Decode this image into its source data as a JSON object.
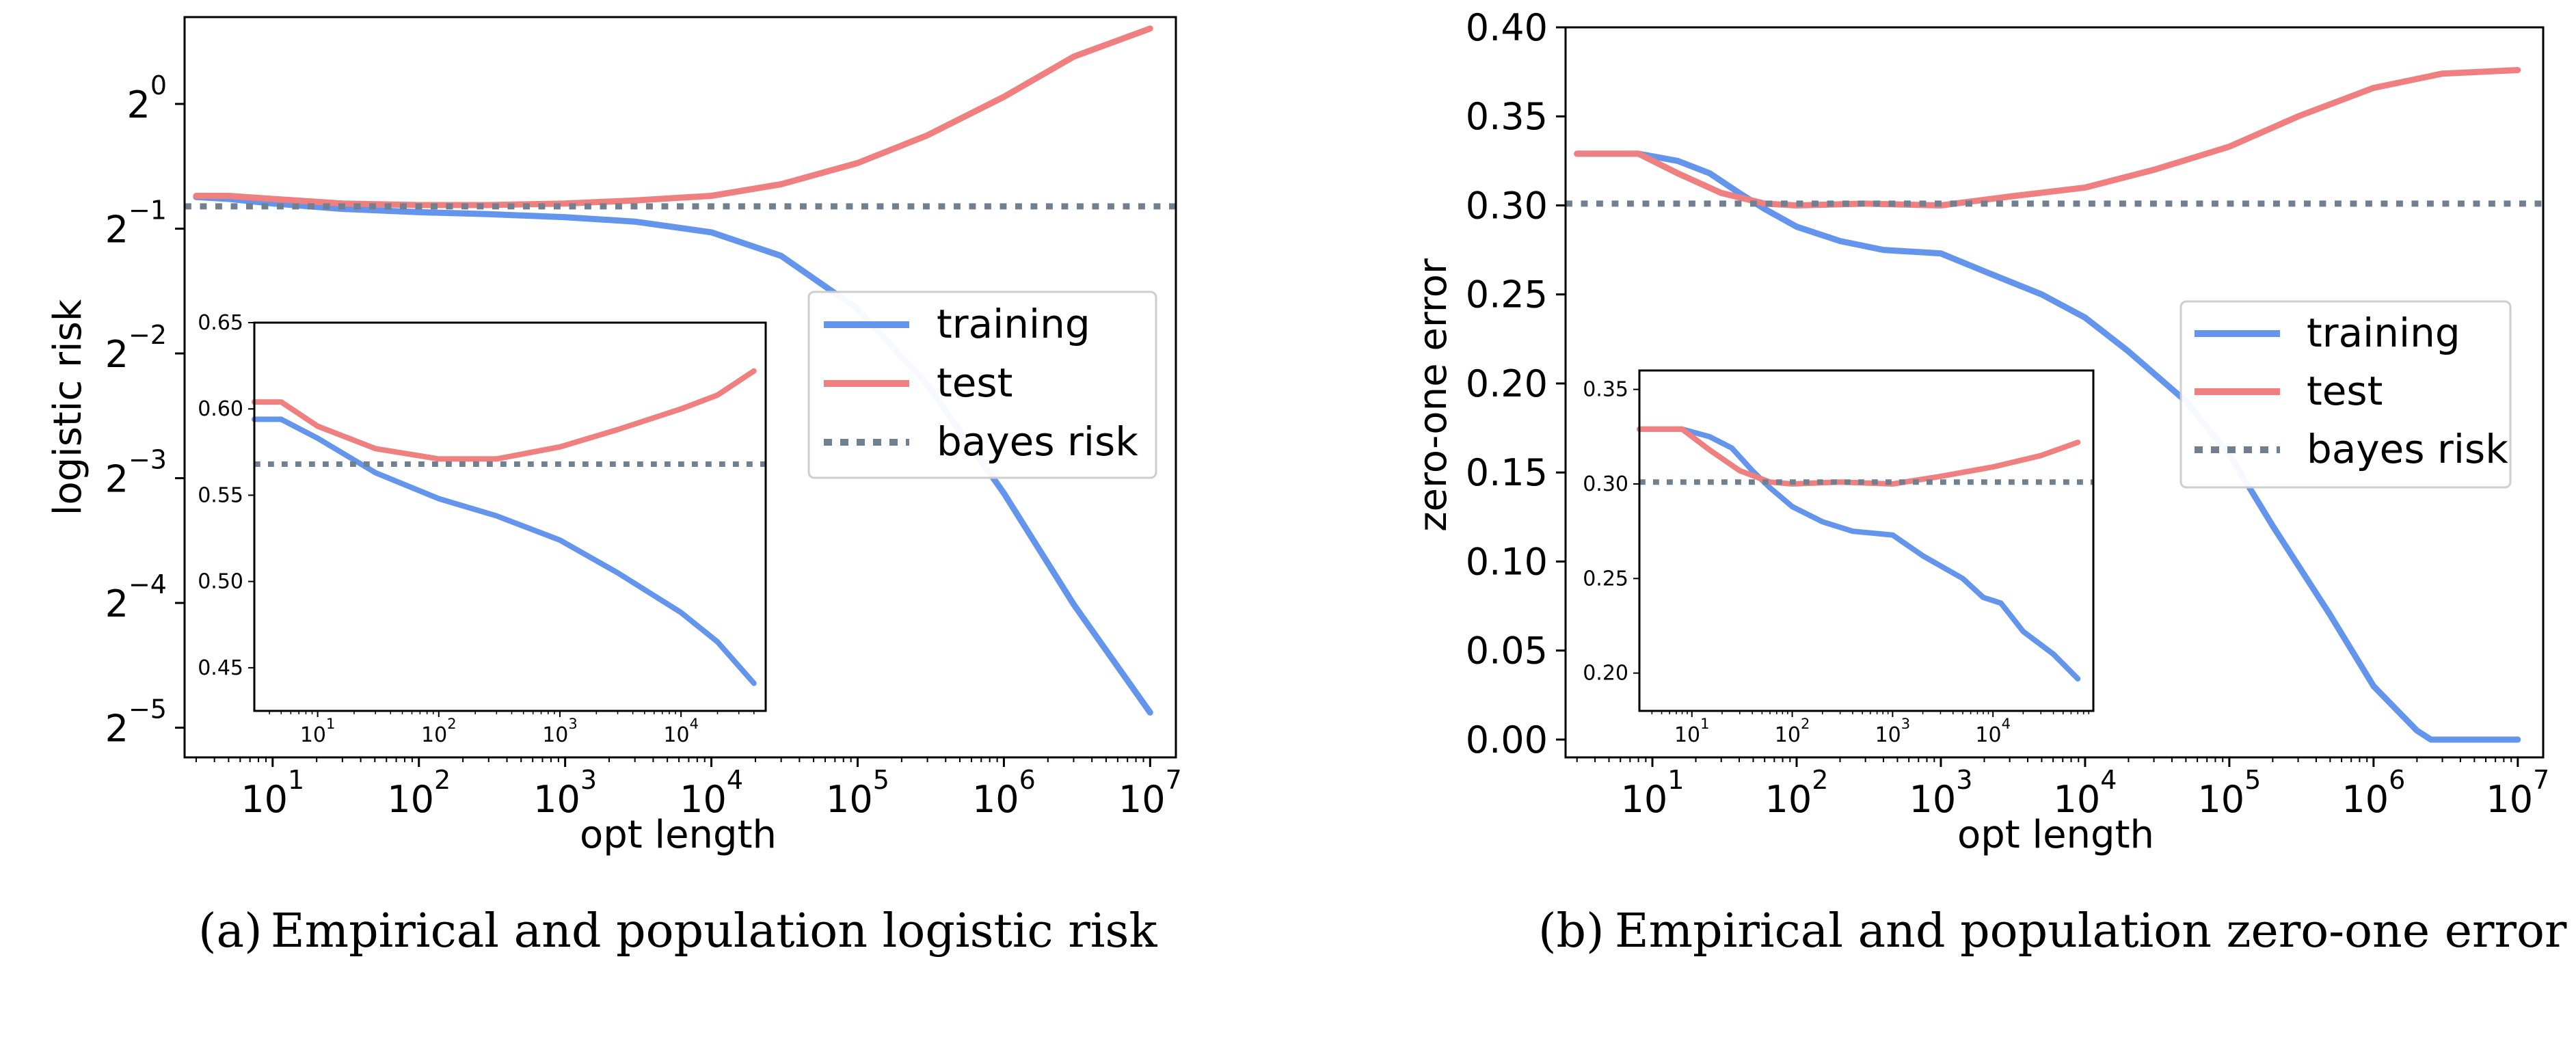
{
  "chart_data": [
    {
      "id": "a",
      "type": "line",
      "panel_label": "(a)",
      "caption": "Empirical and population logistic risk",
      "xlabel": "opt length",
      "ylabel": "logistic risk",
      "xscale": "log",
      "yscale": "log2",
      "xlim": [
        2.5,
        15000000
      ],
      "ylim": [
        0.0265,
        1.62
      ],
      "xticks": [
        {
          "value": 10,
          "base": "10",
          "exp": "1"
        },
        {
          "value": 100,
          "base": "10",
          "exp": "2"
        },
        {
          "value": 1000,
          "base": "10",
          "exp": "3"
        },
        {
          "value": 10000,
          "base": "10",
          "exp": "4"
        },
        {
          "value": 100000,
          "base": "10",
          "exp": "5"
        },
        {
          "value": 1000000,
          "base": "10",
          "exp": "6"
        },
        {
          "value": 10000000,
          "base": "10",
          "exp": "7"
        }
      ],
      "yticks": [
        {
          "value": 1,
          "base": "2",
          "exp": "0"
        },
        {
          "value": 0.5,
          "base": "2",
          "exp": "−1"
        },
        {
          "value": 0.25,
          "base": "2",
          "exp": "−2"
        },
        {
          "value": 0.125,
          "base": "2",
          "exp": "−3"
        },
        {
          "value": 0.0625,
          "base": "2",
          "exp": "−4"
        },
        {
          "value": 0.03125,
          "base": "2",
          "exp": "−5"
        }
      ],
      "legend": {
        "position": "center-right",
        "entries": [
          "training",
          "test",
          "bayes risk"
        ]
      },
      "series": [
        {
          "name": "training",
          "color": "#6495ed",
          "x": [
            3,
            5,
            10,
            30,
            100,
            300,
            1000,
            3000,
            10000,
            30000,
            100000,
            300000,
            1000000,
            3000000,
            10000000
          ],
          "y": [
            0.596,
            0.59,
            0.575,
            0.558,
            0.548,
            0.542,
            0.533,
            0.52,
            0.49,
            0.43,
            0.32,
            0.21,
            0.115,
            0.062,
            0.034
          ]
        },
        {
          "name": "test",
          "color": "#f07f7f",
          "x": [
            3,
            5,
            10,
            30,
            100,
            300,
            1000,
            3000,
            10000,
            30000,
            100000,
            300000,
            1000000,
            3000000,
            10000000
          ],
          "y": [
            0.6,
            0.6,
            0.59,
            0.575,
            0.57,
            0.57,
            0.575,
            0.585,
            0.6,
            0.64,
            0.72,
            0.84,
            1.04,
            1.3,
            1.52
          ]
        },
        {
          "name": "bayes risk",
          "color": "#708090",
          "style": "dotted",
          "x": [
            2.5,
            15000000
          ],
          "y": [
            0.566,
            0.566
          ]
        }
      ],
      "inset": {
        "xscale": "log",
        "xlim": [
          3,
          50000
        ],
        "ylim": [
          0.425,
          0.65
        ],
        "xticks": [
          {
            "value": 10,
            "base": "10",
            "exp": "1"
          },
          {
            "value": 100,
            "base": "10",
            "exp": "2"
          },
          {
            "value": 1000,
            "base": "10",
            "exp": "3"
          },
          {
            "value": 10000,
            "base": "10",
            "exp": "4"
          }
        ],
        "yticks": [
          0.45,
          0.5,
          0.55,
          0.6,
          0.65
        ],
        "ytick_labels": [
          "0.45",
          "0.50",
          "0.55",
          "0.60",
          "0.65"
        ],
        "series": [
          {
            "name": "training",
            "color": "#6495ed",
            "x": [
              3,
              5,
              10,
              30,
              100,
              300,
              1000,
              3000,
              10000,
              20000,
              40000
            ],
            "y": [
              0.594,
              0.594,
              0.583,
              0.563,
              0.548,
              0.538,
              0.524,
              0.505,
              0.482,
              0.465,
              0.441
            ]
          },
          {
            "name": "test",
            "color": "#f07f7f",
            "x": [
              3,
              5,
              10,
              30,
              100,
              300,
              1000,
              3000,
              10000,
              20000,
              40000
            ],
            "y": [
              0.604,
              0.604,
              0.59,
              0.577,
              0.571,
              0.571,
              0.578,
              0.588,
              0.6,
              0.608,
              0.622
            ]
          },
          {
            "name": "bayes risk",
            "color": "#708090",
            "style": "dotted",
            "x": [
              3,
              50000
            ],
            "y": [
              0.568,
              0.568
            ]
          }
        ]
      }
    },
    {
      "id": "b",
      "type": "line",
      "panel_label": "(b)",
      "caption": "Empirical and population zero-one error",
      "xlabel": "opt length",
      "ylabel": "zero-one error",
      "xscale": "log",
      "yscale": "linear",
      "xlim": [
        2.5,
        15000000
      ],
      "ylim": [
        -0.01,
        0.4
      ],
      "xticks": [
        {
          "value": 10,
          "base": "10",
          "exp": "1"
        },
        {
          "value": 100,
          "base": "10",
          "exp": "2"
        },
        {
          "value": 1000,
          "base": "10",
          "exp": "3"
        },
        {
          "value": 10000,
          "base": "10",
          "exp": "4"
        },
        {
          "value": 100000,
          "base": "10",
          "exp": "5"
        },
        {
          "value": 1000000,
          "base": "10",
          "exp": "6"
        },
        {
          "value": 10000000,
          "base": "10",
          "exp": "7"
        }
      ],
      "yticks": [
        0.0,
        0.05,
        0.1,
        0.15,
        0.2,
        0.25,
        0.3,
        0.35,
        0.4
      ],
      "ytick_labels": [
        "0.00",
        "0.05",
        "0.10",
        "0.15",
        "0.20",
        "0.25",
        "0.30",
        "0.35",
        "0.40"
      ],
      "legend": {
        "position": "center-right",
        "entries": [
          "training",
          "test",
          "bayes risk"
        ]
      },
      "series": [
        {
          "name": "training",
          "color": "#6495ed",
          "x": [
            3,
            8,
            15,
            25,
            40,
            60,
            100,
            200,
            400,
            1000,
            2000,
            5000,
            10000,
            20000,
            50000,
            100000,
            200000,
            500000,
            1000000,
            2000000,
            2500000,
            5000000,
            10000000
          ],
          "y": [
            0.329,
            0.329,
            0.325,
            0.318,
            0.307,
            0.298,
            0.288,
            0.28,
            0.275,
            0.273,
            0.263,
            0.25,
            0.237,
            0.218,
            0.19,
            0.16,
            0.12,
            0.07,
            0.03,
            0.005,
            0.0,
            0.0,
            0.0
          ]
        },
        {
          "name": "test",
          "color": "#f07f7f",
          "x": [
            3,
            8,
            15,
            30,
            60,
            100,
            300,
            1000,
            3000,
            10000,
            30000,
            100000,
            300000,
            1000000,
            3000000,
            10000000
          ],
          "y": [
            0.329,
            0.329,
            0.318,
            0.307,
            0.301,
            0.3,
            0.301,
            0.3,
            0.305,
            0.31,
            0.32,
            0.333,
            0.35,
            0.366,
            0.374,
            0.376
          ]
        },
        {
          "name": "bayes risk",
          "color": "#708090",
          "style": "dotted",
          "x": [
            2.5,
            15000000
          ],
          "y": [
            0.301,
            0.301
          ]
        }
      ],
      "inset": {
        "xscale": "log",
        "xlim": [
          3,
          100000
        ],
        "ylim": [
          0.18,
          0.36
        ],
        "xticks": [
          {
            "value": 10,
            "base": "10",
            "exp": "1"
          },
          {
            "value": 100,
            "base": "10",
            "exp": "2"
          },
          {
            "value": 1000,
            "base": "10",
            "exp": "3"
          },
          {
            "value": 10000,
            "base": "10",
            "exp": "4"
          }
        ],
        "yticks": [
          0.2,
          0.25,
          0.3,
          0.35
        ],
        "ytick_labels": [
          "0.20",
          "0.25",
          "0.30",
          "0.35"
        ],
        "series": [
          {
            "name": "training",
            "color": "#6495ed",
            "x": [
              3,
              8,
              15,
              25,
              40,
              60,
              100,
              200,
              400,
              1000,
              2000,
              5000,
              8000,
              12000,
              20000,
              40000,
              70000
            ],
            "y": [
              0.329,
              0.329,
              0.325,
              0.319,
              0.307,
              0.298,
              0.288,
              0.28,
              0.275,
              0.273,
              0.262,
              0.25,
              0.24,
              0.237,
              0.222,
              0.21,
              0.197
            ]
          },
          {
            "name": "test",
            "color": "#f07f7f",
            "x": [
              3,
              8,
              15,
              30,
              60,
              100,
              300,
              1000,
              3000,
              10000,
              30000,
              70000
            ],
            "y": [
              0.329,
              0.329,
              0.318,
              0.307,
              0.301,
              0.3,
              0.301,
              0.3,
              0.304,
              0.309,
              0.315,
              0.322
            ]
          },
          {
            "name": "bayes risk",
            "color": "#708090",
            "style": "dotted",
            "x": [
              3,
              100000
            ],
            "y": [
              0.301,
              0.301
            ]
          }
        ]
      }
    }
  ]
}
